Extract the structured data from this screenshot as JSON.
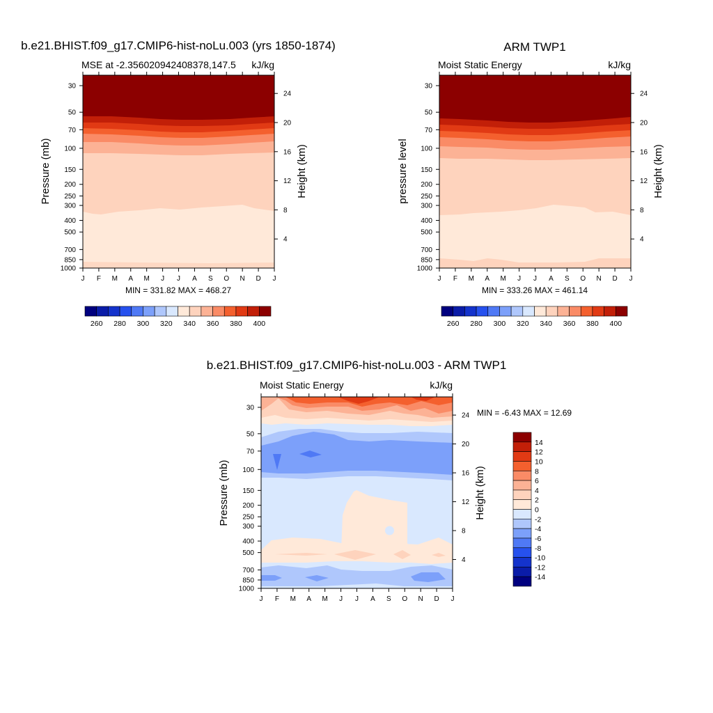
{
  "page": {
    "bottom_title": "b.e21.BHIST.f09_g17.CMIP6-hist-noLu.003 - ARM TWP1"
  },
  "ticks": {
    "months": [
      "J",
      "F",
      "M",
      "A",
      "M",
      "J",
      "J",
      "A",
      "S",
      "O",
      "N",
      "D",
      "J"
    ],
    "pressure": [
      "30",
      "50",
      "70",
      "100",
      "150",
      "200",
      "250",
      "300",
      "400",
      "500",
      "700",
      "850",
      "1000"
    ],
    "pressure_values": [
      30,
      50,
      70,
      100,
      150,
      200,
      250,
      300,
      400,
      500,
      700,
      850,
      1000
    ],
    "height": [
      "24",
      "20",
      "16",
      "12",
      "8",
      "4"
    ],
    "height_values": [
      24,
      20,
      16,
      12,
      8,
      4
    ]
  },
  "panels": {
    "model": {
      "title": "b.e21.BHIST.f09_g17.CMIP6-hist-noLu.003 (yrs 1850-1874)",
      "left_label": "MSE at -2.356020942408378,147.5",
      "right_label": "kJ/kg",
      "ylabel": "Pressure (mb)",
      "ylabel_right": "Height (km)",
      "stats": "MIN = 331.82 MAX = 468.27"
    },
    "obs": {
      "title": "ARM TWP1",
      "left_label": "Moist Static Energy",
      "right_label": "kJ/kg",
      "ylabel": "pressure level",
      "ylabel_right": "Height (km)",
      "stats": "MIN = 333.26 MAX = 461.14"
    },
    "diff": {
      "left_label": "Moist Static Energy",
      "right_label": "kJ/kg",
      "ylabel": "Pressure (mb)",
      "ylabel_right": "Height (km)",
      "stats": "MIN =  -6.43 MAX =  12.69"
    }
  },
  "colorbars": {
    "abs": {
      "labels": [
        "260",
        "280",
        "300",
        "320",
        "340",
        "360",
        "380",
        "400"
      ],
      "colors": [
        "#00007f",
        "#0a1ca8",
        "#1433cc",
        "#2651ee",
        "#4f79f5",
        "#7ca0fa",
        "#afc7fc",
        "#d9e8fe",
        "#ffe9d9",
        "#fed3bd",
        "#fcb295",
        "#fa8b66",
        "#f4602e",
        "#e13a14",
        "#c21f08",
        "#8c0000"
      ]
    },
    "diff": {
      "labels": [
        "14",
        "12",
        "10",
        "8",
        "6",
        "4",
        "2",
        "0",
        "-2",
        "-4",
        "-6",
        "-8",
        "-10",
        "-12",
        "-14"
      ],
      "colors": [
        "#8c0000",
        "#c21f08",
        "#e13a14",
        "#f4602e",
        "#fa8b66",
        "#fcb295",
        "#fed3bd",
        "#ffe9d9",
        "#d9e8fe",
        "#afc7fc",
        "#7ca0fa",
        "#4f79f5",
        "#2651ee",
        "#1433cc",
        "#0a1ca8",
        "#00007f"
      ]
    }
  },
  "chart_data": [
    {
      "type": "heatmap",
      "title": "b.e21.BHIST.f09_g17.CMIP6-hist-noLu.003 (yrs 1850-1874)",
      "subtitle": "MSE at -2.356020942408378,147.5",
      "units": "kJ/kg",
      "xlabel": "",
      "ylabel": "Pressure (mb)",
      "ylabel_right": "Height (km)",
      "x": [
        "J",
        "F",
        "M",
        "A",
        "M",
        "J",
        "J",
        "A",
        "S",
        "O",
        "N",
        "D",
        "J"
      ],
      "y_pressure_ticks": [
        30,
        50,
        70,
        100,
        150,
        200,
        250,
        300,
        400,
        500,
        700,
        850,
        1000
      ],
      "y_log_scale": true,
      "levels": [
        260,
        270,
        280,
        290,
        300,
        310,
        320,
        330,
        340,
        350,
        360,
        370,
        380,
        390,
        400
      ],
      "min": 331.82,
      "max": 468.27,
      "approx_band_pressure_mb": {
        "above_400": 55,
        "390_400": 65,
        "380_390": 72,
        "370_380": 80,
        "360_370": 92,
        "350_360": 115,
        "340_350": 340
      }
    },
    {
      "type": "heatmap",
      "title": "ARM TWP1",
      "subtitle": "Moist Static Energy",
      "units": "kJ/kg",
      "xlabel": "",
      "ylabel": "pressure level",
      "ylabel_right": "Height (km)",
      "x": [
        "J",
        "F",
        "M",
        "A",
        "M",
        "J",
        "J",
        "A",
        "S",
        "O",
        "N",
        "D",
        "J"
      ],
      "y_pressure_ticks": [
        30,
        50,
        70,
        100,
        150,
        200,
        250,
        300,
        400,
        500,
        700,
        850,
        1000
      ],
      "y_log_scale": true,
      "levels": [
        260,
        270,
        280,
        290,
        300,
        310,
        320,
        330,
        340,
        350,
        360,
        370,
        380,
        390,
        400
      ],
      "min": 333.26,
      "max": 461.14,
      "approx_band_pressure_mb": {
        "above_400": 57,
        "390_400": 64,
        "380_390": 72,
        "370_380": 82,
        "360_370": 95,
        "350_360": 125,
        "340_350": 350
      }
    },
    {
      "type": "heatmap",
      "title": "b.e21.BHIST.f09_g17.CMIP6-hist-noLu.003 - ARM TWP1",
      "subtitle": "Moist Static Energy",
      "units": "kJ/kg",
      "xlabel": "",
      "ylabel": "Pressure (mb)",
      "ylabel_right": "Height (km)",
      "x": [
        "J",
        "F",
        "M",
        "A",
        "M",
        "J",
        "J",
        "A",
        "S",
        "O",
        "N",
        "D",
        "J"
      ],
      "y_pressure_ticks": [
        30,
        50,
        70,
        100,
        150,
        200,
        250,
        300,
        400,
        500,
        700,
        850,
        1000
      ],
      "y_log_scale": true,
      "levels": [
        -14,
        -12,
        -10,
        -8,
        -6,
        -4,
        -2,
        0,
        2,
        4,
        6,
        8,
        10,
        12,
        14
      ],
      "min": -6.43,
      "max": 12.69
    }
  ]
}
